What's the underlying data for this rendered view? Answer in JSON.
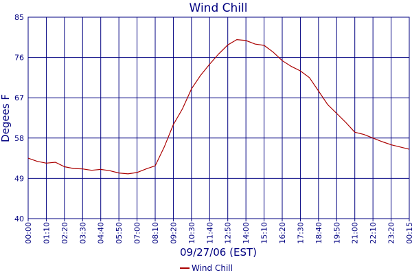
{
  "chart_data": {
    "type": "line",
    "title": "Wind Chill",
    "xlabel": "09/27/06 (EST)",
    "ylabel": "Degees F",
    "ylim": [
      40,
      85
    ],
    "yticks": [
      "40",
      "49",
      "58",
      "67",
      "76",
      "85"
    ],
    "xticks": [
      "00:00",
      "01:10",
      "02:20",
      "03:30",
      "04:40",
      "05:50",
      "07:00",
      "08:10",
      "09:20",
      "10:30",
      "11:40",
      "12:50",
      "14:00",
      "15:10",
      "16:20",
      "17:30",
      "18:40",
      "19:50",
      "21:00",
      "22:10",
      "23:20",
      "00:15"
    ],
    "grid": true,
    "legend": "bottom-center",
    "colors": {
      "title": "#000080",
      "axis_text": "#000080",
      "grid": "#000080",
      "series": "#aa0000"
    },
    "series": [
      {
        "name": "Wind Chill",
        "x": [
          0,
          0.5,
          1,
          1.5,
          2,
          2.5,
          3,
          3.5,
          4,
          4.5,
          5,
          5.5,
          6,
          6.5,
          7,
          7.5,
          8,
          8.5,
          9,
          9.5,
          10,
          10.5,
          11,
          11.5,
          12,
          12.5,
          13,
          13.5,
          14,
          14.5,
          15,
          15.5,
          16,
          16.5,
          17,
          17.5,
          18,
          18.5,
          19,
          19.5,
          20,
          20.5,
          21
        ],
        "y": [
          53.5,
          52.8,
          52.4,
          52.6,
          51.6,
          51.2,
          51.1,
          50.8,
          51.0,
          50.7,
          50.2,
          50.0,
          50.3,
          51.1,
          51.8,
          56.0,
          61.0,
          64.5,
          69.0,
          72.0,
          74.5,
          76.8,
          78.8,
          80.0,
          79.8,
          79.0,
          78.7,
          77.2,
          75.3,
          74.0,
          73.0,
          71.5,
          68.5,
          65.5,
          63.5,
          61.5,
          59.3,
          58.8,
          58.0,
          57.2,
          56.5,
          56.0,
          55.5
        ]
      }
    ]
  }
}
